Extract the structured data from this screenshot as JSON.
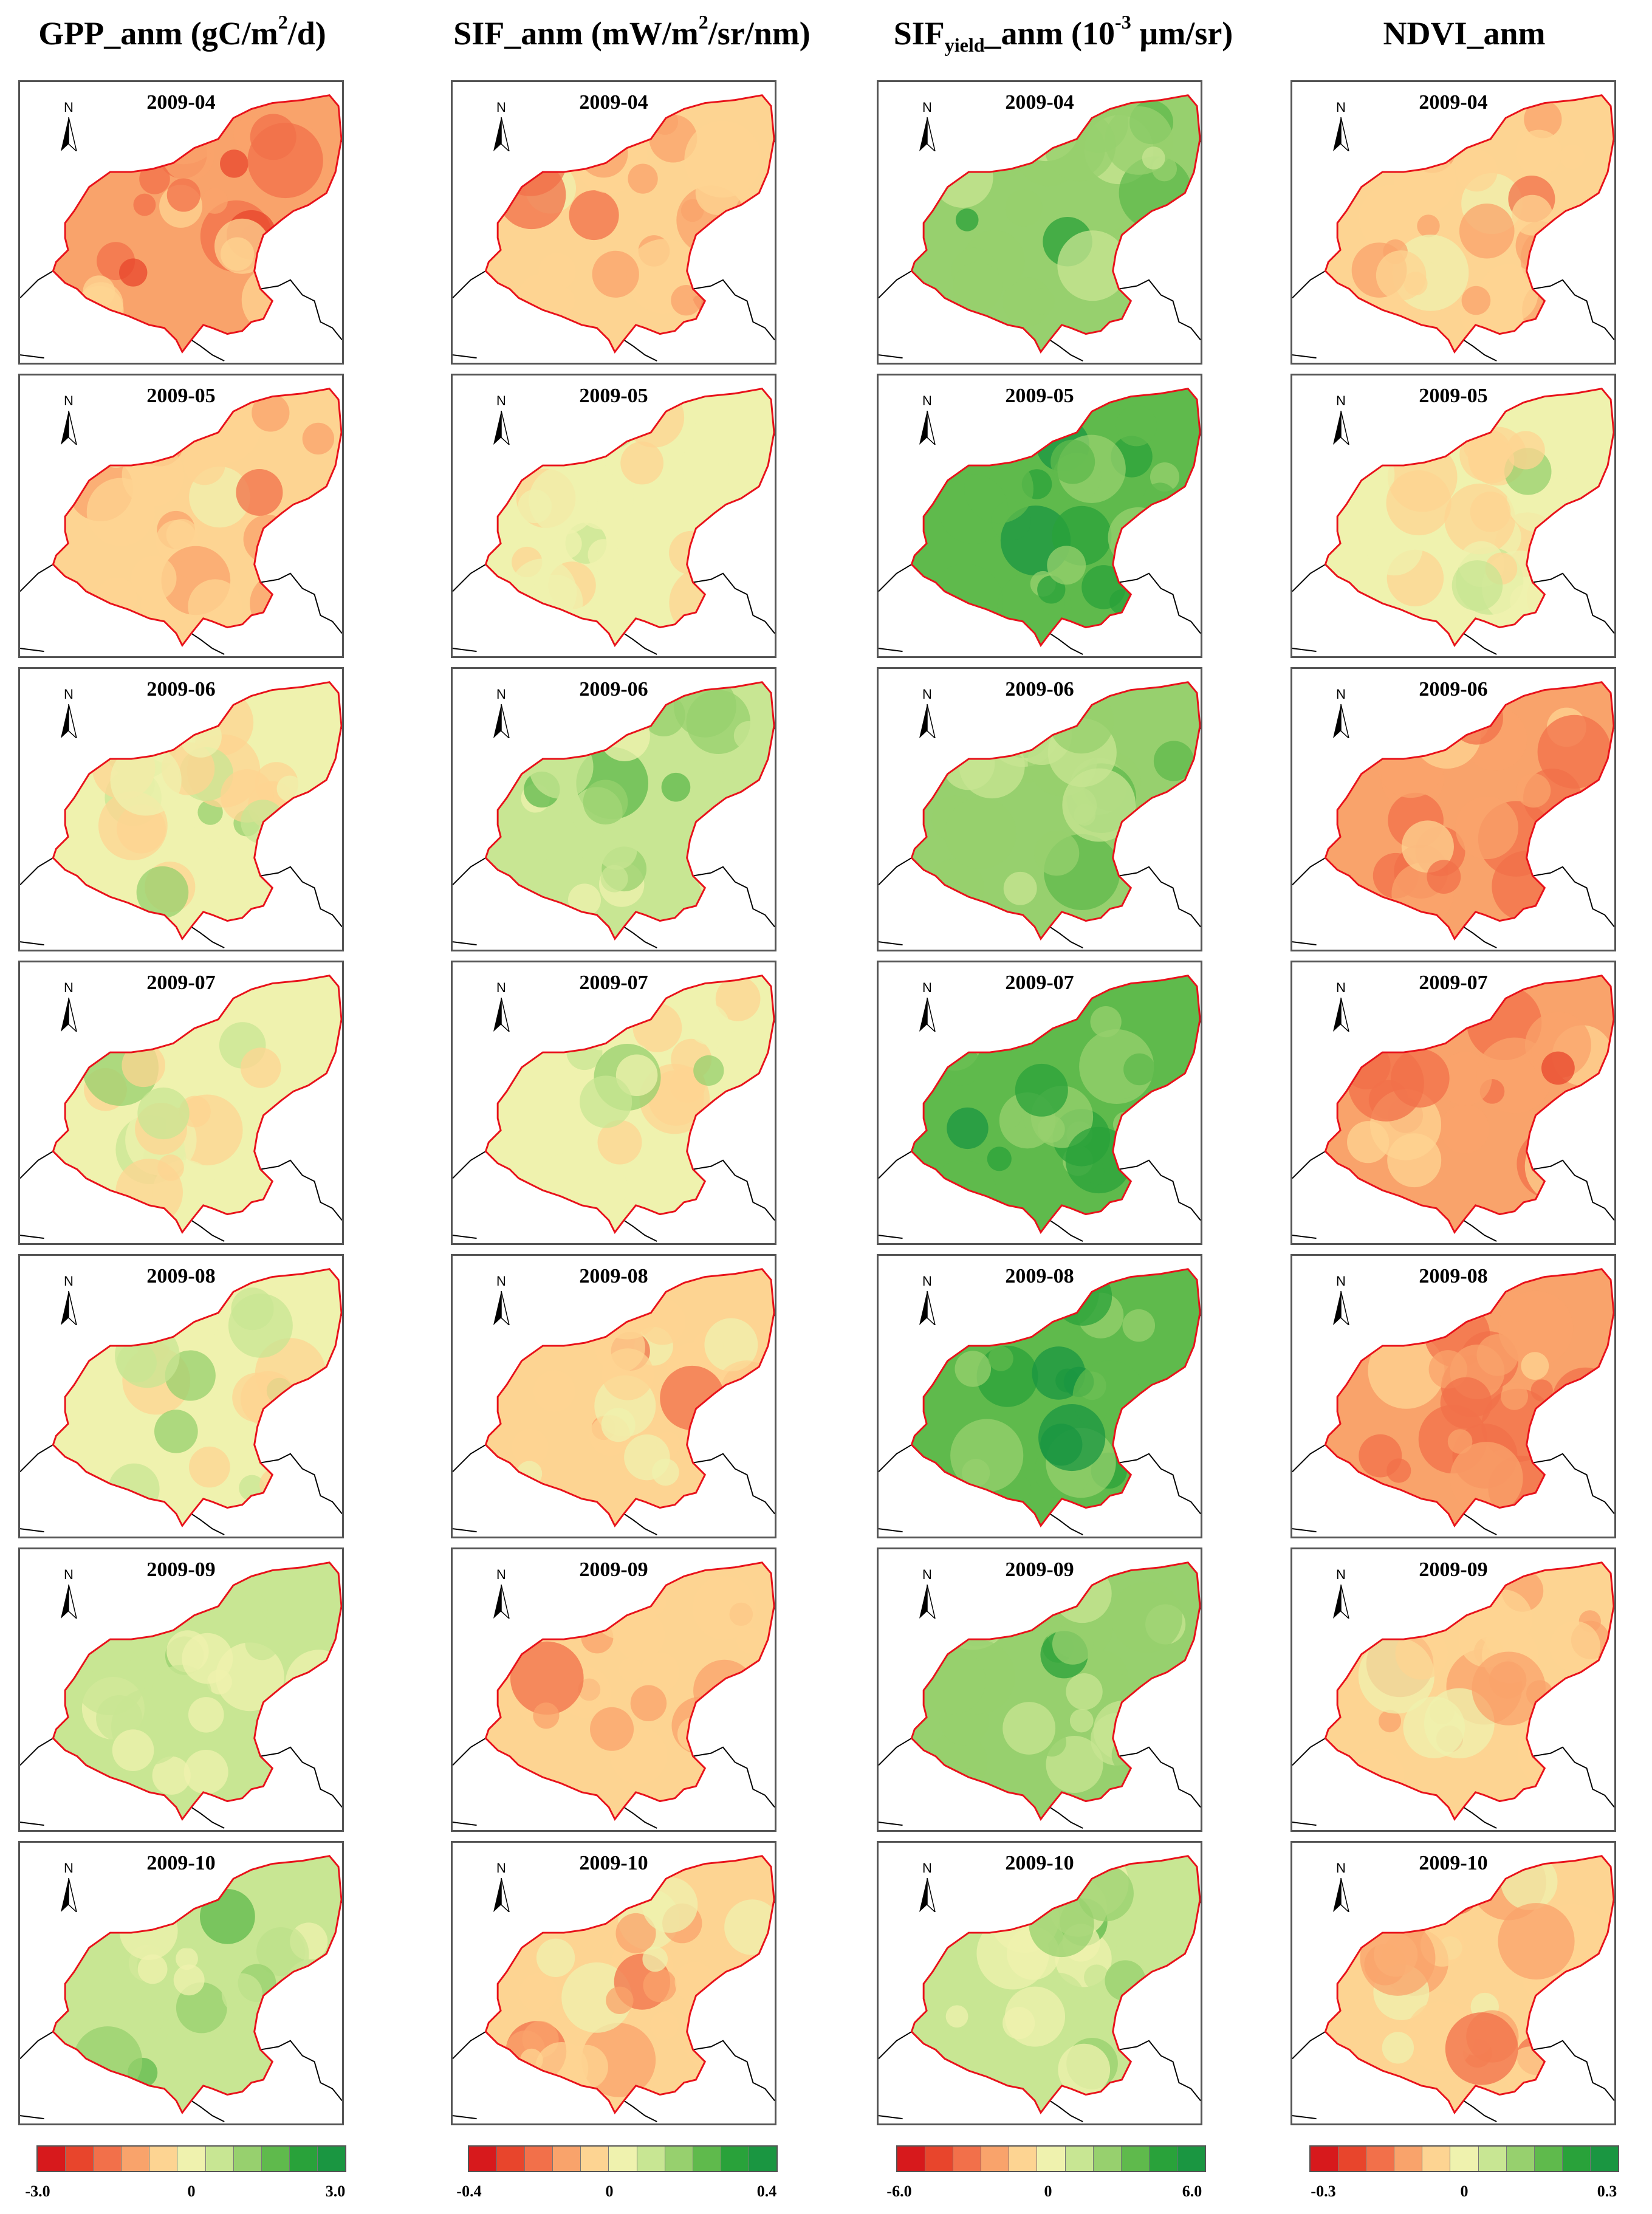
{
  "columns": [
    {
      "key": "gpp",
      "title_main": "GPP_anm (gC/m",
      "title_sup": "2",
      "title_tail": "/d)",
      "title_sub": "",
      "legend": {
        "min": "-3.0",
        "mid": "0",
        "max": "3.0"
      },
      "fills": [
        3,
        4,
        5,
        5,
        5,
        6,
        6
      ]
    },
    {
      "key": "sif",
      "title_main": "SIF_anm (mW/m",
      "title_sup": "2",
      "title_tail": "/sr/nm)",
      "title_sub": "",
      "legend": {
        "min": "-0.4",
        "mid": "0",
        "max": "0.4"
      },
      "fills": [
        4,
        5,
        6,
        5,
        4,
        4,
        4
      ]
    },
    {
      "key": "sify",
      "title_main": "SIF",
      "title_sub": "yield",
      "title_after_sub": "_anm (10",
      "title_sup": "-3",
      "title_tail": " µm/sr)",
      "legend": {
        "min": "-6.0",
        "mid": "0",
        "max": "6.0"
      },
      "fills": [
        7,
        8,
        7,
        8,
        8,
        7,
        6
      ]
    },
    {
      "key": "ndvi",
      "title_main": "NDVI_anm",
      "title_sup": "",
      "title_tail": "",
      "title_sub": "",
      "legend": {
        "min": "-0.3",
        "mid": "0",
        "max": "0.3"
      },
      "fills": [
        4,
        5,
        3,
        3,
        3,
        4,
        4
      ]
    }
  ],
  "months": [
    "2009-04",
    "2009-05",
    "2009-06",
    "2009-07",
    "2009-08",
    "2009-09",
    "2009-10"
  ],
  "north_label": "N",
  "colors": {
    "ramp": [
      "#d7191c",
      "#e8452c",
      "#f2704a",
      "#f9a36b",
      "#fdd492",
      "#eff2ae",
      "#c8e693",
      "#97d06e",
      "#5fba4c",
      "#29a23a",
      "#1a9641"
    ],
    "boundary": "#e8121b",
    "border": "#000000"
  }
}
